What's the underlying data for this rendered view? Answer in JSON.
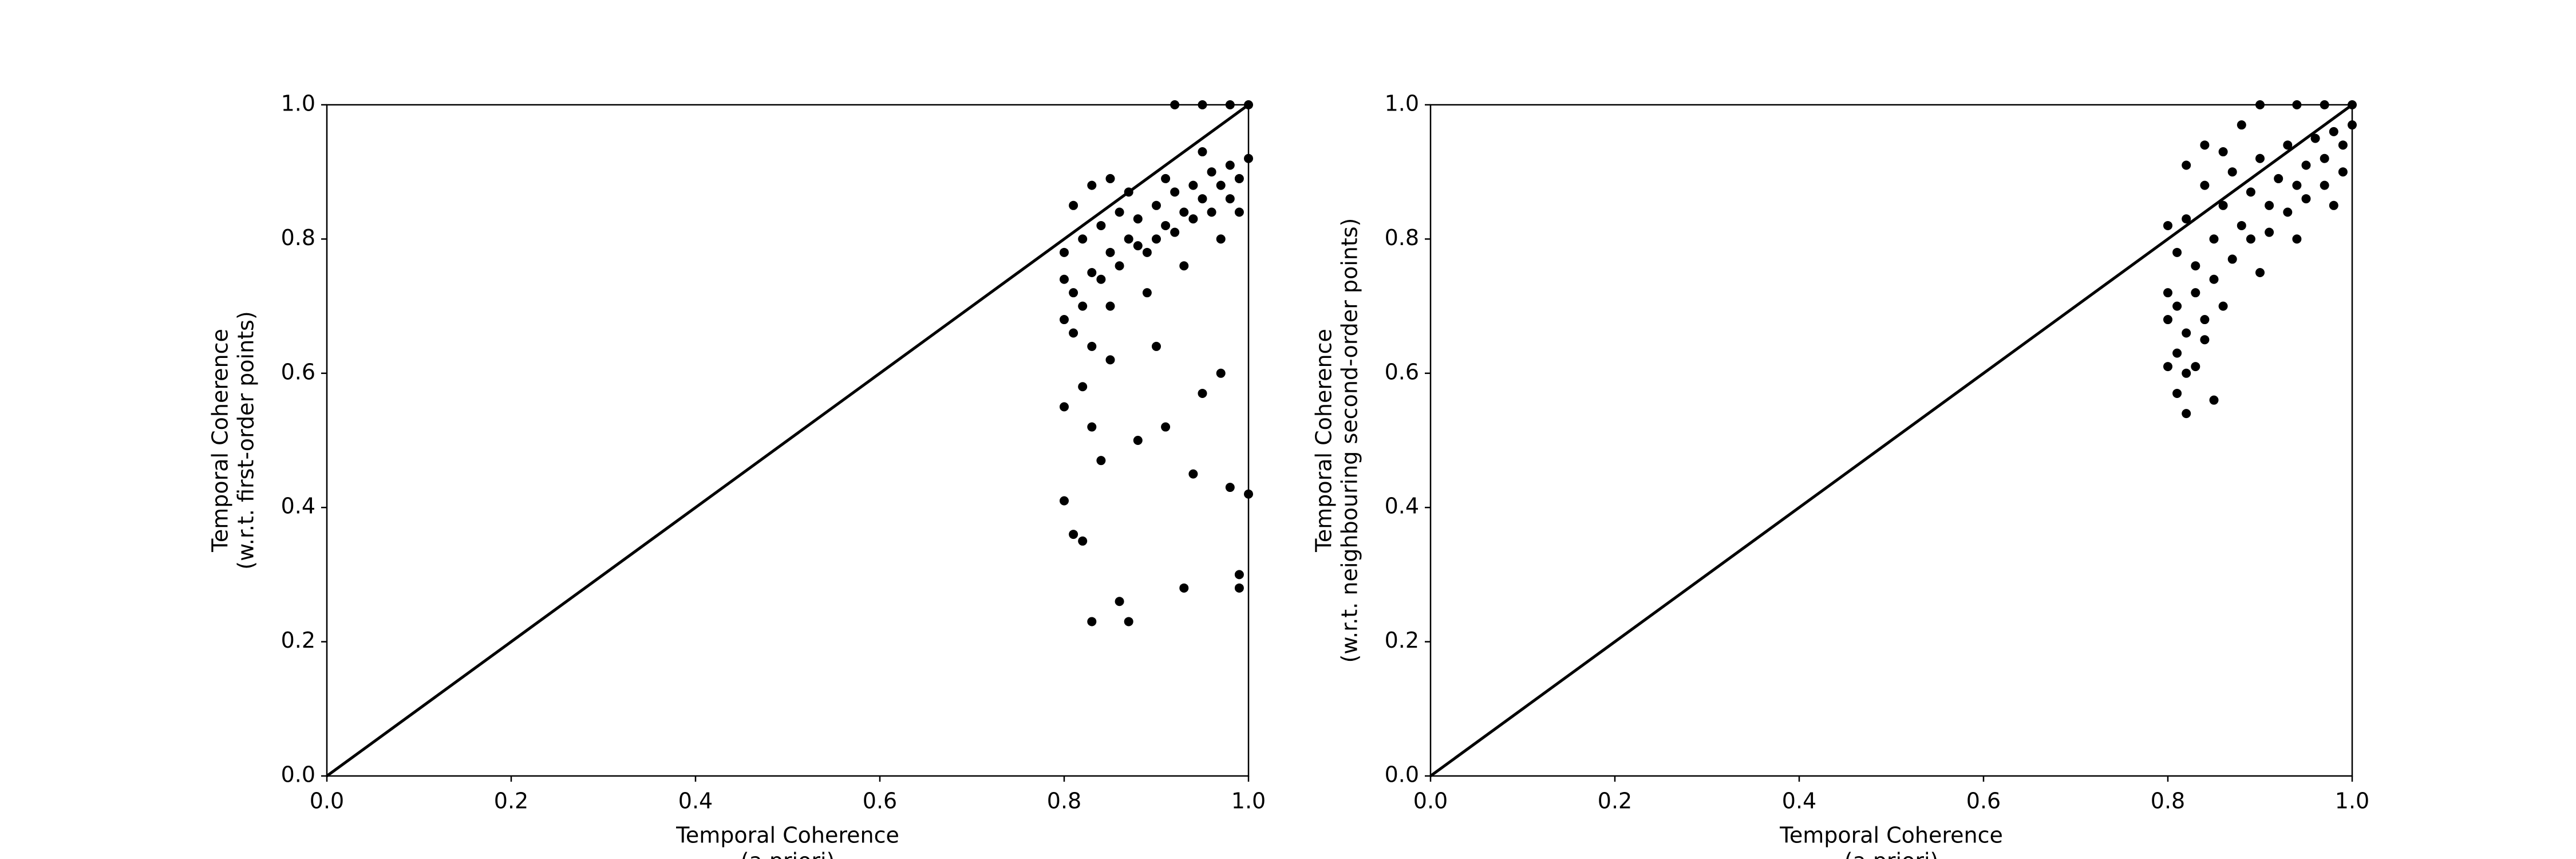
{
  "chart_data": [
    {
      "type": "scatter",
      "color": "#000000",
      "xlabel": [
        "Temporal Coherence",
        "(a priori)"
      ],
      "ylabel": [
        "Temporal Coherence",
        "(w.r.t. first-order points)"
      ],
      "xlim": [
        0,
        1
      ],
      "ylim": [
        0,
        1
      ],
      "xticks": [
        {
          "value": 0,
          "label": "0.0"
        },
        0.2,
        0.4,
        0.6,
        0.8,
        {
          "value": 1,
          "label": "1.0"
        }
      ],
      "yticks": [
        {
          "value": 0,
          "label": "0.0"
        },
        0.2,
        0.4,
        0.6,
        0.8,
        {
          "value": 1,
          "label": "1.0"
        }
      ],
      "x": [
        0.8,
        0.81,
        0.8,
        0.82,
        0.83,
        0.84,
        0.85,
        0.86,
        0.87,
        0.88,
        0.89,
        0.9,
        0.91,
        0.92,
        0.93,
        0.94,
        0.95,
        0.96,
        0.97,
        0.98,
        0.99,
        1.0,
        0.82,
        0.84,
        0.86,
        0.88,
        0.9,
        0.92,
        0.94,
        0.96,
        0.98,
        0.81,
        0.83,
        0.85,
        0.87,
        0.8,
        0.81,
        0.83,
        0.85,
        0.89,
        0.93,
        0.97,
        0.99,
        0.95,
        0.91,
        0.8,
        0.81,
        0.82,
        0.83,
        0.86,
        0.87,
        0.93,
        0.99,
        0.99,
        1.0,
        0.98,
        0.84,
        0.88,
        0.91,
        0.95,
        0.82,
        0.85,
        0.9,
        0.97,
        0.83,
        0.8,
        0.94,
        0.92,
        0.95,
        0.98,
        1.0
      ],
      "y": [
        0.78,
        0.72,
        0.68,
        0.8,
        0.75,
        0.82,
        0.78,
        0.84,
        0.8,
        0.83,
        0.78,
        0.85,
        0.82,
        0.87,
        0.84,
        0.88,
        0.86,
        0.9,
        0.88,
        0.91,
        0.89,
        0.92,
        0.7,
        0.74,
        0.76,
        0.79,
        0.8,
        0.81,
        0.83,
        0.84,
        0.86,
        0.85,
        0.88,
        0.89,
        0.87,
        0.74,
        0.66,
        0.64,
        0.7,
        0.72,
        0.76,
        0.8,
        0.84,
        0.93,
        0.89,
        0.41,
        0.36,
        0.35,
        0.23,
        0.26,
        0.23,
        0.28,
        0.3,
        0.28,
        0.42,
        0.43,
        0.47,
        0.5,
        0.52,
        0.57,
        0.58,
        0.62,
        0.64,
        0.6,
        0.52,
        0.55,
        0.45,
        1.0,
        1.0,
        1.0,
        1.0
      ]
    },
    {
      "type": "scatter",
      "color": "#000000",
      "xlabel": [
        "Temporal Coherence",
        "(a priori)"
      ],
      "ylabel": [
        "Temporal Coherence",
        "(w.r.t. neighbouring second-order points)"
      ],
      "xlim": [
        0,
        1
      ],
      "ylim": [
        0,
        1
      ],
      "xticks": [
        {
          "value": 0,
          "label": "0.0"
        },
        0.2,
        0.4,
        0.6,
        0.8,
        {
          "value": 1,
          "label": "1.0"
        }
      ],
      "yticks": [
        {
          "value": 0,
          "label": "0.0"
        },
        0.2,
        0.4,
        0.6,
        0.8,
        {
          "value": 1,
          "label": "1.0"
        }
      ],
      "x": [
        0.8,
        0.8,
        0.81,
        0.82,
        0.83,
        0.84,
        0.85,
        0.86,
        0.87,
        0.88,
        0.89,
        0.9,
        0.91,
        0.92,
        0.93,
        0.94,
        0.95,
        0.96,
        0.97,
        0.98,
        0.99,
        1.0,
        0.81,
        0.83,
        0.85,
        0.87,
        0.89,
        0.91,
        0.93,
        0.95,
        0.97,
        0.99,
        0.82,
        0.84,
        0.86,
        0.88,
        0.8,
        0.82,
        0.84,
        0.86,
        0.9,
        0.94,
        0.98,
        0.8,
        0.81,
        0.82,
        0.81,
        0.82,
        0.85,
        0.83,
        0.84,
        0.9,
        0.94,
        0.97,
        1.0
      ],
      "y": [
        0.72,
        0.68,
        0.78,
        0.83,
        0.76,
        0.88,
        0.8,
        0.85,
        0.9,
        0.82,
        0.87,
        0.92,
        0.85,
        0.89,
        0.94,
        0.88,
        0.91,
        0.95,
        0.92,
        0.96,
        0.94,
        0.97,
        0.7,
        0.72,
        0.74,
        0.77,
        0.8,
        0.81,
        0.84,
        0.86,
        0.88,
        0.9,
        0.91,
        0.94,
        0.93,
        0.97,
        0.82,
        0.66,
        0.68,
        0.7,
        0.75,
        0.8,
        0.85,
        0.61,
        0.63,
        0.6,
        0.57,
        0.54,
        0.56,
        0.61,
        0.65,
        1.0,
        1.0,
        1.0,
        1.0
      ]
    }
  ]
}
